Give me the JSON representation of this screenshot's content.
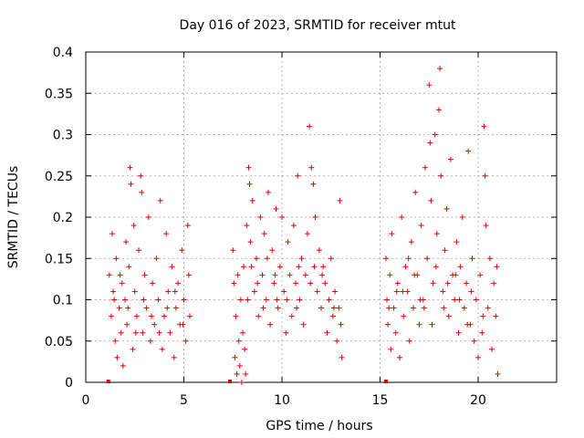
{
  "chart_data": {
    "type": "scatter",
    "title": "Day 016 of 2023, SRMTID for receiver mtut",
    "xlabel": "GPS time / hours",
    "ylabel": "SRMTID / TECUs",
    "xlim": [
      0,
      24
    ],
    "ylim": [
      0,
      0.4
    ],
    "x_ticks": [
      0,
      5,
      10,
      15,
      20
    ],
    "x_tick_labels": [
      "0",
      "5",
      "10",
      "15",
      "20"
    ],
    "y_ticks": [
      0,
      0.05,
      0.1,
      0.15,
      0.2,
      0.25,
      0.3,
      0.35,
      0.4
    ],
    "y_tick_labels": [
      "0",
      "0.05",
      "0.1",
      "0.15",
      "0.2",
      "0.25",
      "0.3",
      "0.35",
      "0.4"
    ],
    "grid": true,
    "marker": "plus",
    "color": "#e00000",
    "series": [
      {
        "name": "SRMTID",
        "points": [
          [
            1.2,
            0.13
          ],
          [
            1.3,
            0.08
          ],
          [
            1.35,
            0.18
          ],
          [
            1.4,
            0.11
          ],
          [
            1.5,
            0.05
          ],
          [
            1.55,
            0.15
          ],
          [
            1.6,
            0.03
          ],
          [
            1.7,
            0.09
          ],
          [
            1.8,
            0.06
          ],
          [
            1.85,
            0.12
          ],
          [
            1.9,
            0.02
          ],
          [
            2.0,
            0.1
          ],
          [
            2.05,
            0.17
          ],
          [
            2.1,
            0.07
          ],
          [
            2.2,
            0.14
          ],
          [
            2.25,
            0.26
          ],
          [
            2.3,
            0.24
          ],
          [
            2.4,
            0.04
          ],
          [
            2.45,
            0.19
          ],
          [
            2.5,
            0.11
          ],
          [
            2.6,
            0.08
          ],
          [
            2.7,
            0.16
          ],
          [
            2.8,
            0.25
          ],
          [
            2.85,
            0.23
          ],
          [
            2.9,
            0.06
          ],
          [
            3.0,
            0.13
          ],
          [
            3.1,
            0.09
          ],
          [
            3.2,
            0.2
          ],
          [
            3.3,
            0.05
          ],
          [
            3.4,
            0.12
          ],
          [
            3.5,
            0.07
          ],
          [
            3.6,
            0.15
          ],
          [
            3.7,
            0.1
          ],
          [
            3.8,
            0.22
          ],
          [
            3.9,
            0.04
          ],
          [
            4.0,
            0.08
          ],
          [
            4.1,
            0.18
          ],
          [
            4.2,
            0.11
          ],
          [
            4.3,
            0.06
          ],
          [
            4.4,
            0.14
          ],
          [
            4.5,
            0.03
          ],
          [
            4.6,
            0.09
          ],
          [
            4.7,
            0.12
          ],
          [
            4.8,
            0.07
          ],
          [
            4.9,
            0.16
          ],
          [
            5.0,
            0.1
          ],
          [
            5.1,
            0.05
          ],
          [
            5.2,
            0.19
          ],
          [
            5.25,
            0.13
          ],
          [
            5.3,
            0.08
          ],
          [
            1.45,
            0.1
          ],
          [
            1.75,
            0.13
          ],
          [
            2.15,
            0.09
          ],
          [
            2.55,
            0.06
          ],
          [
            2.95,
            0.1
          ],
          [
            3.35,
            0.08
          ],
          [
            3.75,
            0.06
          ],
          [
            4.15,
            0.09
          ],
          [
            4.55,
            0.11
          ],
          [
            4.95,
            0.07
          ],
          [
            7.5,
            0.16
          ],
          [
            7.55,
            0.12
          ],
          [
            7.6,
            0.03
          ],
          [
            7.65,
            0.08
          ],
          [
            7.7,
            0.01
          ],
          [
            7.75,
            0.13
          ],
          [
            7.8,
            0.05
          ],
          [
            7.85,
            0.02
          ],
          [
            7.9,
            0.1
          ],
          [
            7.95,
            0.0
          ],
          [
            8.0,
            0.06
          ],
          [
            8.05,
            0.14
          ],
          [
            8.1,
            0.04
          ],
          [
            8.15,
            0.01
          ],
          [
            8.2,
            0.19
          ],
          [
            8.3,
            0.26
          ],
          [
            8.35,
            0.24
          ],
          [
            8.4,
            0.17
          ],
          [
            8.5,
            0.22
          ],
          [
            8.6,
            0.11
          ],
          [
            8.7,
            0.15
          ],
          [
            8.8,
            0.08
          ],
          [
            8.9,
            0.2
          ],
          [
            9.0,
            0.13
          ],
          [
            9.1,
            0.18
          ],
          [
            9.2,
            0.1
          ],
          [
            9.3,
            0.23
          ],
          [
            9.4,
            0.07
          ],
          [
            9.5,
            0.16
          ],
          [
            9.6,
            0.12
          ],
          [
            9.7,
            0.21
          ],
          [
            9.8,
            0.09
          ],
          [
            9.9,
            0.14
          ],
          [
            10.0,
            0.2
          ],
          [
            10.1,
            0.11
          ],
          [
            10.2,
            0.06
          ],
          [
            10.3,
            0.17
          ],
          [
            10.4,
            0.13
          ],
          [
            10.5,
            0.08
          ],
          [
            10.6,
            0.19
          ],
          [
            10.7,
            0.12
          ],
          [
            10.8,
            0.25
          ],
          [
            10.9,
            0.1
          ],
          [
            11.0,
            0.15
          ],
          [
            11.1,
            0.07
          ],
          [
            11.2,
            0.13
          ],
          [
            11.3,
            0.18
          ],
          [
            11.4,
            0.31
          ],
          [
            11.5,
            0.26
          ],
          [
            11.6,
            0.24
          ],
          [
            11.7,
            0.2
          ],
          [
            11.8,
            0.11
          ],
          [
            11.9,
            0.16
          ],
          [
            12.0,
            0.09
          ],
          [
            12.1,
            0.14
          ],
          [
            12.2,
            0.12
          ],
          [
            12.3,
            0.06
          ],
          [
            12.4,
            0.1
          ],
          [
            12.5,
            0.15
          ],
          [
            12.6,
            0.08
          ],
          [
            12.7,
            0.11
          ],
          [
            12.8,
            0.05
          ],
          [
            12.9,
            0.09
          ],
          [
            13.0,
            0.07
          ],
          [
            13.05,
            0.03
          ],
          [
            12.95,
            0.22
          ],
          [
            8.45,
            0.14
          ],
          [
            9.05,
            0.09
          ],
          [
            9.65,
            0.13
          ],
          [
            10.25,
            0.1
          ],
          [
            10.85,
            0.14
          ],
          [
            11.45,
            0.12
          ],
          [
            12.05,
            0.13
          ],
          [
            12.65,
            0.09
          ],
          [
            8.25,
            0.1
          ],
          [
            8.75,
            0.12
          ],
          [
            9.25,
            0.15
          ],
          [
            9.75,
            0.1
          ],
          [
            10.75,
            0.09
          ],
          [
            11.65,
            0.14
          ],
          [
            15.3,
            0.15
          ],
          [
            15.35,
            0.1
          ],
          [
            15.4,
            0.07
          ],
          [
            15.5,
            0.13
          ],
          [
            15.55,
            0.04
          ],
          [
            15.6,
            0.18
          ],
          [
            15.7,
            0.09
          ],
          [
            15.8,
            0.06
          ],
          [
            15.9,
            0.12
          ],
          [
            16.0,
            0.03
          ],
          [
            16.1,
            0.2
          ],
          [
            16.2,
            0.08
          ],
          [
            16.3,
            0.14
          ],
          [
            16.4,
            0.11
          ],
          [
            16.5,
            0.05
          ],
          [
            16.6,
            0.17
          ],
          [
            16.7,
            0.09
          ],
          [
            16.8,
            0.23
          ],
          [
            16.9,
            0.13
          ],
          [
            17.0,
            0.07
          ],
          [
            17.1,
            0.19
          ],
          [
            17.2,
            0.1
          ],
          [
            17.3,
            0.26
          ],
          [
            17.4,
            0.15
          ],
          [
            17.5,
            0.36
          ],
          [
            17.55,
            0.29
          ],
          [
            17.6,
            0.22
          ],
          [
            17.7,
            0.12
          ],
          [
            17.8,
            0.3
          ],
          [
            17.9,
            0.18
          ],
          [
            18.0,
            0.33
          ],
          [
            18.05,
            0.38
          ],
          [
            18.1,
            0.25
          ],
          [
            18.2,
            0.11
          ],
          [
            18.3,
            0.16
          ],
          [
            18.4,
            0.21
          ],
          [
            18.5,
            0.08
          ],
          [
            18.6,
            0.27
          ],
          [
            18.7,
            0.13
          ],
          [
            18.8,
            0.1
          ],
          [
            18.9,
            0.17
          ],
          [
            19.0,
            0.06
          ],
          [
            19.1,
            0.14
          ],
          [
            19.2,
            0.2
          ],
          [
            19.3,
            0.09
          ],
          [
            19.4,
            0.12
          ],
          [
            19.5,
            0.28
          ],
          [
            19.6,
            0.07
          ],
          [
            19.7,
            0.15
          ],
          [
            19.8,
            0.05
          ],
          [
            19.9,
            0.1
          ],
          [
            20.0,
            0.03
          ],
          [
            20.1,
            0.13
          ],
          [
            20.2,
            0.06
          ],
          [
            20.3,
            0.31
          ],
          [
            20.35,
            0.25
          ],
          [
            20.4,
            0.19
          ],
          [
            20.5,
            0.09
          ],
          [
            20.6,
            0.15
          ],
          [
            20.7,
            0.04
          ],
          [
            20.8,
            0.12
          ],
          [
            20.9,
            0.08
          ],
          [
            21.0,
            0.01
          ],
          [
            20.95,
            0.14
          ],
          [
            16.15,
            0.11
          ],
          [
            16.75,
            0.13
          ],
          [
            17.25,
            0.09
          ],
          [
            17.85,
            0.14
          ],
          [
            18.45,
            0.12
          ],
          [
            19.05,
            0.1
          ],
          [
            19.65,
            0.11
          ],
          [
            20.25,
            0.08
          ],
          [
            15.45,
            0.09
          ],
          [
            15.85,
            0.11
          ],
          [
            16.45,
            0.15
          ],
          [
            17.05,
            0.1
          ],
          [
            17.65,
            0.07
          ],
          [
            18.25,
            0.09
          ],
          [
            18.85,
            0.13
          ],
          [
            19.45,
            0.07
          ]
        ]
      }
    ],
    "axis_markers": [
      1.15,
      7.35,
      15.3
    ]
  }
}
